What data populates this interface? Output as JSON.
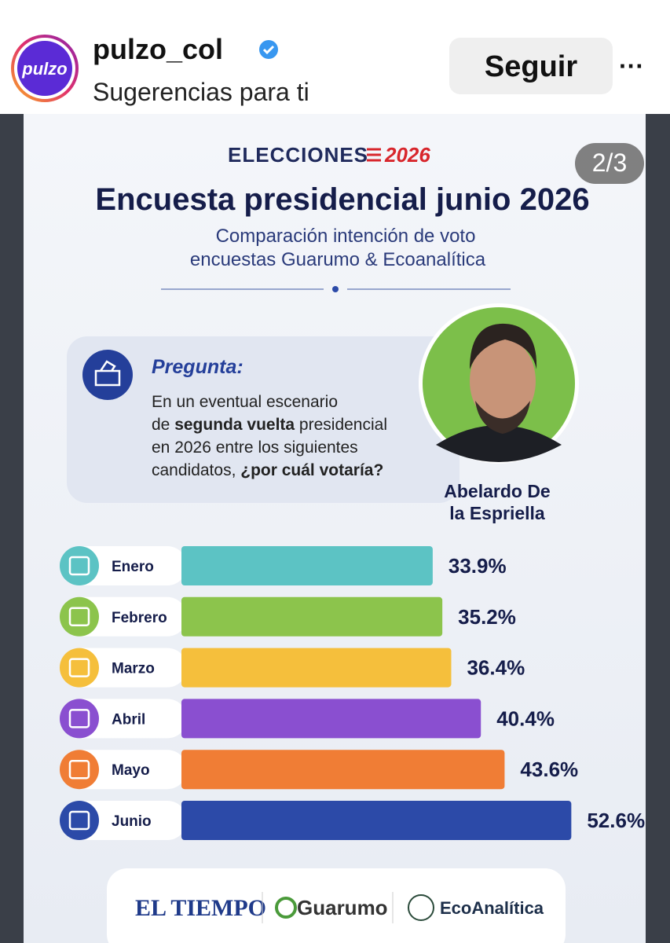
{
  "header": {
    "avatar": "pulzo",
    "username": "pulzo_col",
    "subtitle": "Sugerencias para ti",
    "follow": "Seguir",
    "more": "···"
  },
  "post": {
    "counter": "2/3",
    "kicker": "ELECCIONES",
    "kicker_year": "2026",
    "question_label": "Pregunta:",
    "question_lines": [
      [
        {
          "text": "En un eventual escenario"
        }
      ],
      [
        {
          "text": "de "
        },
        {
          "text": "segunda vuelta",
          "bold": true
        },
        {
          "text": " presidencial"
        }
      ],
      [
        {
          "text": "en 2026 entre los siguientes"
        }
      ],
      [
        {
          "text": "candidatos, "
        },
        {
          "text": "¿por cuál votaría?",
          "bold": true
        }
      ]
    ],
    "candidate_lines": [
      "Abelardo De",
      "la Espriella"
    ],
    "logos": [
      "EL TIEMPO",
      "Guarumo",
      "EcoAnalítica"
    ]
  },
  "chart_data": {
    "type": "bar",
    "orientation": "horizontal",
    "title": "Encuesta presidencial junio 2026",
    "subtitle_lines": [
      "Comparación intención de voto",
      "encuestas Guarumo & Ecoanalítica"
    ],
    "categories": [
      "Enero",
      "Febrero",
      "Marzo",
      "Abril",
      "Mayo",
      "Junio"
    ],
    "values": [
      33.9,
      35.2,
      36.4,
      40.4,
      43.6,
      52.6
    ],
    "value_labels": [
      "33.9%",
      "35.2%",
      "36.4%",
      "40.4%",
      "43.6%",
      "52.6%"
    ],
    "colors": [
      "#5cc3c4",
      "#8cc44c",
      "#f5bf3c",
      "#8a4fd0",
      "#f07d35",
      "#2c4aa8"
    ],
    "xlim": [
      0,
      55
    ]
  }
}
